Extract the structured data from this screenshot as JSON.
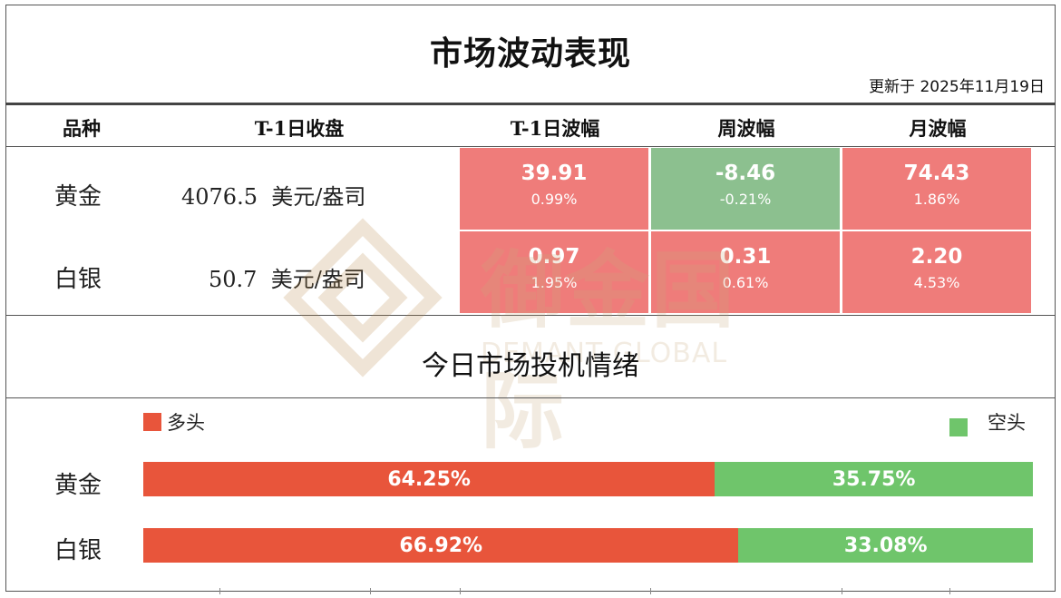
{
  "header": {
    "title": "市场波动表现",
    "updated": "更新于 2025年11月19日"
  },
  "table": {
    "columns": [
      "品种",
      "T-1日收盘",
      "T-1日波幅",
      "周波幅",
      "月波幅"
    ],
    "rows": [
      {
        "name": "黄金",
        "close": "4076.5  美元/盎司",
        "daily": {
          "value": "39.91",
          "pct": "0.99%",
          "color": "#ef7c7a"
        },
        "weekly": {
          "value": "-8.46",
          "pct": "-0.21%",
          "color": "#8cc08f"
        },
        "monthly": {
          "value": "74.43",
          "pct": "1.86%",
          "color": "#ef7c7a"
        }
      },
      {
        "name": "白银",
        "close": "50.7  美元/盎司",
        "daily": {
          "value": "0.97",
          "pct": "1.95%",
          "color": "#ef7c7a"
        },
        "weekly": {
          "value": "0.31",
          "pct": "0.61%",
          "color": "#ef7c7a"
        },
        "monthly": {
          "value": "2.20",
          "pct": "4.53%",
          "color": "#ef7c7a"
        }
      }
    ]
  },
  "watermark": {
    "cn": "御金国际",
    "en": "DEMANT GLOBAL"
  },
  "sentiment": {
    "title": "今日市场投机情绪",
    "legend_long": "多头",
    "legend_short": "空头",
    "colors": {
      "long": "#e8553b",
      "short": "#6fc56b"
    },
    "rows": [
      {
        "name": "黄金",
        "long": 64.25,
        "short": 35.75,
        "long_label": "64.25%",
        "short_label": "35.75%"
      },
      {
        "name": "白银",
        "long": 66.92,
        "short": 33.08,
        "long_label": "66.92%",
        "short_label": "33.08%"
      }
    ]
  }
}
